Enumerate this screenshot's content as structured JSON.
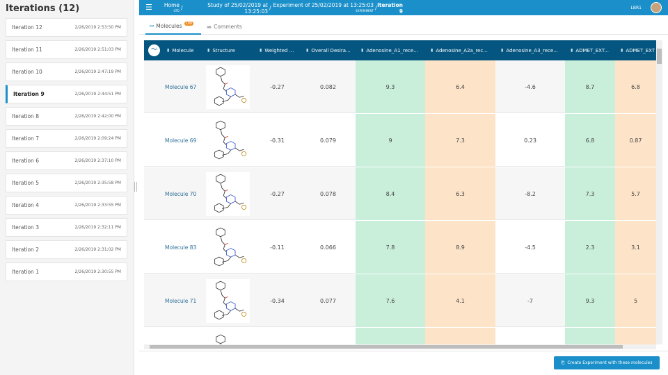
{
  "sidebar": {
    "title": "Iterations (12)",
    "items": [
      {
        "label": "Iteration 12",
        "date": "2/26/2019 2:53:50 PM"
      },
      {
        "label": "Iteration 11",
        "date": "2/26/2019 2:51:03 PM"
      },
      {
        "label": "Iteration 10",
        "date": "2/26/2019 2:47:19 PM"
      },
      {
        "label": "Iteration 9",
        "date": "2/26/2019 2:44:51 PM",
        "active": true
      },
      {
        "label": "Iteration 8",
        "date": "2/26/2019 2:42:00 PM"
      },
      {
        "label": "Iteration 7",
        "date": "2/26/2019 2:09:24 PM"
      },
      {
        "label": "Iteration 6",
        "date": "2/26/2019 2:37:10 PM"
      },
      {
        "label": "Iteration 5",
        "date": "2/26/2019 2:35:58 PM"
      },
      {
        "label": "Iteration 4",
        "date": "2/26/2019 2:33:55 PM"
      },
      {
        "label": "Iteration 3",
        "date": "2/26/2019 2:32:11 PM"
      },
      {
        "label": "Iteration 2",
        "date": "2/26/2019 2:31:02 PM"
      },
      {
        "label": "Iteration 1",
        "date": "2/26/2019 2:30:55 PM"
      }
    ]
  },
  "breadcrumb": [
    {
      "label": "Home",
      "sub": "GTD"
    },
    {
      "label": "Study of 25/02/2019 at 13:25:03",
      "sub": "STUDY"
    },
    {
      "label": "Experiment of 25/02/2019 at 13:25:03",
      "sub": "EXPERIMENT"
    },
    {
      "label": "Iteration 9",
      "sub": "ITERATION"
    }
  ],
  "user": "LBR1",
  "tabs": {
    "molecules": "Molecules",
    "molecules_count": "100",
    "comments": "Comments"
  },
  "columns": [
    "Molecule",
    "Structure",
    "Weighted ...",
    "Overall Desira...",
    "Adenosine_A1_rece...",
    "Adenosine_A2a_rec...",
    "Adenosine_A3_rece...",
    "ADMET_EXT...",
    "ADMET_EXT"
  ],
  "rows": [
    [
      "Molecule 67",
      "-0.27",
      "0.082",
      "9.3",
      "6.4",
      "-4.6",
      "8.7",
      "6.8"
    ],
    [
      "Molecule 69",
      "-0.31",
      "0.079",
      "9",
      "7.3",
      "0.23",
      "6.8",
      "0.87"
    ],
    [
      "Molecule 70",
      "-0.27",
      "0.078",
      "8.4",
      "6.3",
      "-8.2",
      "7.3",
      "5.7"
    ],
    [
      "Molecule 83",
      "-0.11",
      "0.066",
      "7.8",
      "8.9",
      "-4.5",
      "2.3",
      "3.1"
    ],
    [
      "Molecule 71",
      "-0.34",
      "0.077",
      "7.6",
      "4.1",
      "-7",
      "9.3",
      "5"
    ],
    [
      "",
      "",
      "",
      "",
      "",
      "",
      "",
      ""
    ]
  ],
  "footer": {
    "create_label": "Create Experiment with these molecules"
  },
  "colors": {
    "accent": "#1a8fc9",
    "header": "#04557f",
    "green": "#c9efdb",
    "orange": "#fde4c8"
  }
}
